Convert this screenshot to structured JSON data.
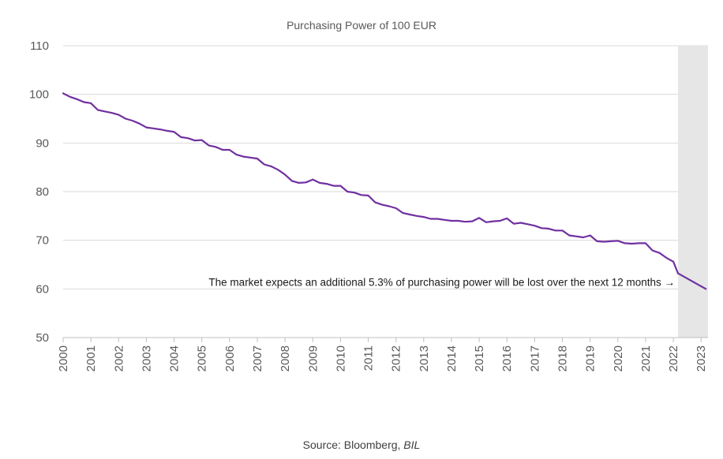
{
  "chart_data": {
    "type": "line",
    "title": "Purchasing Power of 100 EUR",
    "xlabel": "",
    "ylabel": "",
    "xlim": [
      2000,
      2023.25
    ],
    "ylim": [
      50,
      110
    ],
    "y_ticks": [
      50,
      60,
      70,
      80,
      90,
      100,
      110
    ],
    "x_tick_labels": [
      "2000",
      "2001",
      "2002",
      "2003",
      "2004",
      "2005",
      "2006",
      "2007",
      "2008",
      "2009",
      "2010",
      "2011",
      "2012",
      "2013",
      "2014",
      "2015",
      "2016",
      "2017",
      "2018",
      "2019",
      "2020",
      "2021",
      "2022",
      "2023"
    ],
    "grid": "horizontal",
    "line_color": "#7030a0",
    "forecast_shade_color": "#e6e6e6",
    "forecast_start": 2022.17,
    "series": [
      {
        "name": "",
        "x": [
          2000.0,
          2000.25,
          2000.5,
          2000.75,
          2001.0,
          2001.25,
          2001.5,
          2001.75,
          2002.0,
          2002.25,
          2002.5,
          2002.75,
          2003.0,
          2003.25,
          2003.5,
          2003.75,
          2004.0,
          2004.25,
          2004.5,
          2004.75,
          2005.0,
          2005.25,
          2005.5,
          2005.75,
          2006.0,
          2006.25,
          2006.5,
          2006.75,
          2007.0,
          2007.25,
          2007.5,
          2007.75,
          2008.0,
          2008.25,
          2008.5,
          2008.75,
          2009.0,
          2009.25,
          2009.5,
          2009.75,
          2010.0,
          2010.25,
          2010.5,
          2010.75,
          2011.0,
          2011.25,
          2011.5,
          2011.75,
          2012.0,
          2012.25,
          2012.5,
          2012.75,
          2013.0,
          2013.25,
          2013.5,
          2013.75,
          2014.0,
          2014.25,
          2014.5,
          2014.75,
          2015.0,
          2015.25,
          2015.5,
          2015.75,
          2016.0,
          2016.25,
          2016.5,
          2016.75,
          2017.0,
          2017.25,
          2017.5,
          2017.75,
          2018.0,
          2018.25,
          2018.5,
          2018.75,
          2019.0,
          2019.25,
          2019.5,
          2019.75,
          2020.0,
          2020.25,
          2020.5,
          2020.75,
          2021.0,
          2021.25,
          2021.5,
          2021.75,
          2022.0,
          2022.17
        ],
        "values": [
          100.2,
          99.5,
          99.0,
          98.4,
          98.2,
          96.8,
          96.5,
          96.2,
          95.8,
          95.0,
          94.6,
          94.0,
          93.2,
          93.0,
          92.8,
          92.5,
          92.3,
          91.2,
          91.0,
          90.5,
          90.6,
          89.5,
          89.2,
          88.6,
          88.6,
          87.6,
          87.2,
          87.0,
          86.8,
          85.6,
          85.2,
          84.5,
          83.5,
          82.2,
          81.8,
          81.9,
          82.5,
          81.8,
          81.6,
          81.2,
          81.2,
          80.0,
          79.8,
          79.3,
          79.2,
          77.8,
          77.3,
          77.0,
          76.6,
          75.6,
          75.3,
          75.0,
          74.8,
          74.4,
          74.4,
          74.2,
          74.0,
          74.0,
          73.8,
          73.9,
          74.6,
          73.7,
          73.9,
          74.0,
          74.5,
          73.4,
          73.6,
          73.3,
          73.0,
          72.5,
          72.4,
          72.0,
          72.0,
          71.0,
          70.8,
          70.6,
          71.0,
          69.8,
          69.7,
          69.8,
          69.9,
          69.4,
          69.3,
          69.4,
          69.4,
          67.9,
          67.4,
          66.4,
          65.6,
          63.2
        ]
      },
      {
        "name": "",
        "x": [
          2022.17,
          2023.17
        ],
        "values": [
          63.2,
          60.0
        ]
      }
    ],
    "annotation": "The market expects an additional 5.3% of purchasing power will be lost over the next 12 months →"
  },
  "source": {
    "prefix": "Source: Bloomberg, ",
    "italic": "BIL"
  }
}
